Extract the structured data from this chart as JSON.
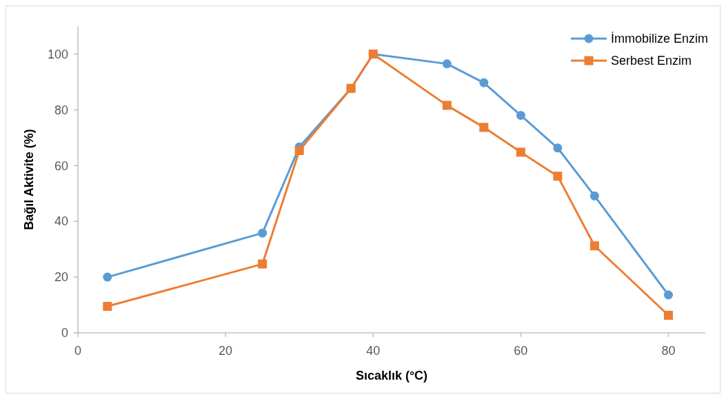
{
  "chart_data": {
    "type": "line",
    "xlabel": "Sıcaklık (°C)",
    "ylabel": "Bağıl Aktivite (%)",
    "x": [
      4,
      25,
      30,
      37,
      40,
      50,
      55,
      60,
      65,
      70,
      80
    ],
    "series": [
      {
        "name": "İmmobilize Enzim",
        "color": "#5b9bd5",
        "marker": "circle",
        "values": [
          20,
          35.8,
          66.7,
          87.7,
          100,
          96.5,
          89.7,
          78,
          66.3,
          49.1,
          13.6
        ]
      },
      {
        "name": "Serbest Enzim",
        "color": "#ed7d31",
        "marker": "square",
        "values": [
          9.5,
          24.7,
          65.4,
          87.7,
          100,
          81.6,
          73.7,
          64.8,
          56.2,
          31.2,
          6.3
        ]
      }
    ],
    "xlim": [
      0,
      85
    ],
    "xticks": [
      0,
      20,
      40,
      60,
      80
    ],
    "ylim": [
      0,
      110
    ],
    "yticks": [
      0,
      20,
      40,
      60,
      80,
      100
    ],
    "grid": false,
    "legend": "top right",
    "line_style": "solid"
  }
}
